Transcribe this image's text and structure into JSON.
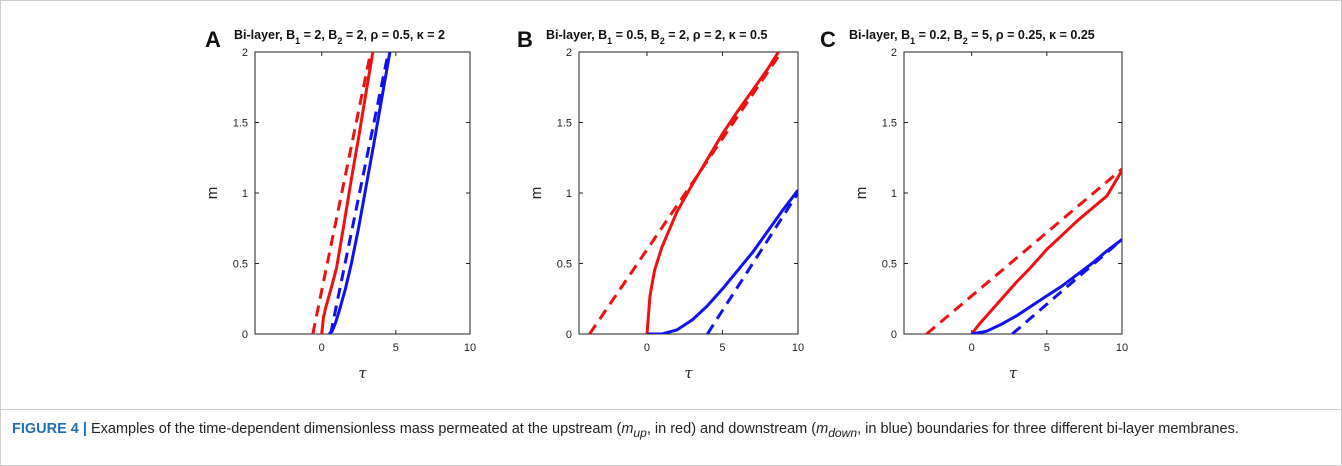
{
  "caption": {
    "label": "FIGURE 4 |",
    "parts": [
      {
        "t": " Examples of the time-dependent dimensionless mass permeated at the upstream (",
        "i": false
      },
      {
        "t": "m",
        "i": true
      },
      {
        "t": "up",
        "i": true,
        "sub": true
      },
      {
        "t": ", in red) and downstream (",
        "i": false
      },
      {
        "t": "m",
        "i": true
      },
      {
        "t": "down",
        "i": true,
        "sub": true
      },
      {
        "t": ", in blue) boundaries for three different bi-layer membranes.",
        "i": false
      }
    ]
  },
  "colors": {
    "upstream": "#ee1111",
    "downstream": "#1111ee",
    "axis": "#222222"
  },
  "chart_data": [
    {
      "type": "line",
      "panel": "A",
      "title": "Bi-layer, B₁ = 2, B₂ = 2, ρ = 0.5, κ = 2",
      "title_parts": [
        {
          "t": "Bi-layer, B"
        },
        {
          "t": "1",
          "sub": true
        },
        {
          "t": " = 2, B"
        },
        {
          "t": "2",
          "sub": true
        },
        {
          "t": " = 2, ρ = 0.5, κ = 2"
        }
      ],
      "xlabel": "τ",
      "ylabel": "m",
      "xlim": [
        -4.5,
        10
      ],
      "ylim": [
        0,
        2
      ],
      "xticks": [
        0,
        5,
        10
      ],
      "yticks": [
        0,
        0.5,
        1,
        1.5,
        2
      ],
      "series": [
        {
          "color": "red",
          "dash": false,
          "x": [
            0.0,
            0.12,
            0.3,
            0.6,
            1.0,
            1.5,
            2.0,
            2.5,
            3.0,
            3.45
          ],
          "y": [
            0.0,
            0.12,
            0.2,
            0.31,
            0.47,
            0.78,
            1.1,
            1.4,
            1.72,
            2.0
          ]
        },
        {
          "color": "red",
          "dash": true,
          "x": [
            -0.6,
            3.3
          ],
          "y": [
            0.0,
            2.0
          ]
        },
        {
          "color": "blue",
          "dash": false,
          "x": [
            0.5,
            0.7,
            0.9,
            1.2,
            1.6,
            2.0,
            2.5,
            3.0,
            3.5,
            4.0,
            4.6
          ],
          "y": [
            0.0,
            0.02,
            0.07,
            0.17,
            0.32,
            0.5,
            0.76,
            1.05,
            1.34,
            1.64,
            2.0
          ]
        },
        {
          "color": "blue",
          "dash": true,
          "x": [
            0.6,
            4.5
          ],
          "y": [
            0.0,
            2.0
          ]
        }
      ]
    },
    {
      "type": "line",
      "panel": "B",
      "title": "Bi-layer, B₁ = 0.5, B₂ = 2, ρ = 2, κ = 0.5",
      "title_parts": [
        {
          "t": "Bi-layer, B"
        },
        {
          "t": "1",
          "sub": true
        },
        {
          "t": " = 0.5, B"
        },
        {
          "t": "2",
          "sub": true
        },
        {
          "t": " = 2, ρ = 2, κ = 0.5"
        }
      ],
      "xlabel": "τ",
      "ylabel": "m",
      "xlim": [
        -4.5,
        10
      ],
      "ylim": [
        0,
        2
      ],
      "xticks": [
        0,
        5,
        10
      ],
      "yticks": [
        0,
        0.5,
        1,
        1.5,
        2
      ],
      "series": [
        {
          "color": "red",
          "dash": false,
          "x": [
            0.0,
            0.2,
            0.5,
            1.0,
            2.0,
            3.0,
            4.0,
            5.0,
            6.0,
            7.0,
            8.0,
            8.7
          ],
          "y": [
            0.0,
            0.27,
            0.45,
            0.62,
            0.87,
            1.06,
            1.24,
            1.42,
            1.58,
            1.73,
            1.88,
            2.0
          ]
        },
        {
          "color": "red",
          "dash": true,
          "x": [
            -3.8,
            8.9
          ],
          "y": [
            0.0,
            2.0
          ]
        },
        {
          "color": "blue",
          "dash": false,
          "x": [
            0.0,
            1.0,
            2.0,
            3.0,
            4.0,
            5.0,
            6.0,
            7.0,
            8.0,
            9.0,
            10.0
          ],
          "y": [
            0.0,
            0.0,
            0.03,
            0.1,
            0.2,
            0.32,
            0.45,
            0.58,
            0.73,
            0.88,
            1.02
          ]
        },
        {
          "color": "blue",
          "dash": true,
          "x": [
            4.0,
            10.0
          ],
          "y": [
            0.0,
            1.0
          ]
        }
      ]
    },
    {
      "type": "line",
      "panel": "C",
      "title": "Bi-layer, B₁ = 0.2, B₂ = 5, ρ = 0.25, κ = 0.25",
      "title_parts": [
        {
          "t": "Bi-layer, B"
        },
        {
          "t": "1",
          "sub": true
        },
        {
          "t": " = 0.2, B"
        },
        {
          "t": "2",
          "sub": true
        },
        {
          "t": " = 5, ρ = 0.25, κ = 0.25"
        }
      ],
      "xlabel": "τ",
      "ylabel": "m",
      "xlim": [
        -4.5,
        10
      ],
      "ylim": [
        0,
        2
      ],
      "xticks": [
        0,
        5,
        10
      ],
      "yticks": [
        0,
        0.5,
        1,
        1.5,
        2
      ],
      "series": [
        {
          "color": "red",
          "dash": false,
          "x": [
            0.0,
            0.5,
            1.0,
            2.0,
            3.0,
            4.0,
            5.0,
            6.0,
            7.0,
            8.0,
            9.0,
            10.0
          ],
          "y": [
            0.0,
            0.07,
            0.13,
            0.25,
            0.37,
            0.48,
            0.6,
            0.7,
            0.8,
            0.89,
            0.98,
            1.16
          ]
        },
        {
          "color": "red",
          "dash": true,
          "x": [
            -3.0,
            10.0
          ],
          "y": [
            0.0,
            1.17
          ]
        },
        {
          "color": "blue",
          "dash": false,
          "x": [
            0.0,
            1.0,
            2.0,
            3.0,
            4.0,
            5.0,
            6.0,
            7.0,
            8.0,
            9.0,
            10.0
          ],
          "y": [
            0.0,
            0.02,
            0.07,
            0.13,
            0.2,
            0.27,
            0.34,
            0.42,
            0.5,
            0.59,
            0.67
          ]
        },
        {
          "color": "blue",
          "dash": true,
          "x": [
            2.7,
            10.0
          ],
          "y": [
            0.0,
            0.67
          ]
        }
      ]
    }
  ]
}
